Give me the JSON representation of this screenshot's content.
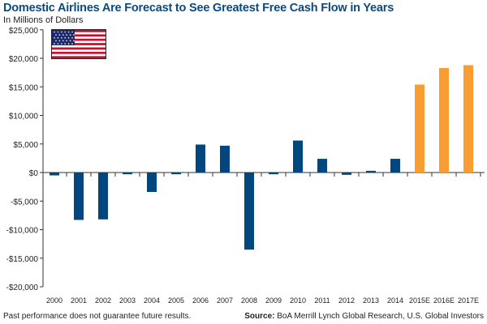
{
  "title": "Domestic Airlines Are Forecast to See Greatest Free Cash Flow in Years",
  "subtitle": "In Millions of Dollars",
  "footer": {
    "disclaimer": "Past performance does not guarantee future results.",
    "source_label": "Source:",
    "source_text": "BoA Merrill Lynch Global Research, U.S. Global Investors"
  },
  "flag_icon": "us-flag-icon",
  "colors": {
    "actual": "#00467f",
    "forecast": "#f99d33",
    "title": "#0b4a7d"
  },
  "chart_data": {
    "type": "bar",
    "title": "Domestic Airlines Are Forecast to See Greatest Free Cash Flow in Years",
    "ylabel": "In Millions of Dollars",
    "categories": [
      "2000",
      "2001",
      "2002",
      "2003",
      "2004",
      "2005",
      "2006",
      "2007",
      "2008",
      "2009",
      "2010",
      "2011",
      "2012",
      "2013",
      "2014",
      "2015E",
      "2016E",
      "2017E"
    ],
    "values": [
      -500,
      -8300,
      -8200,
      -300,
      -3400,
      -300,
      4900,
      4700,
      -13500,
      -300,
      5600,
      2400,
      -400,
      300,
      2400,
      15400,
      18300,
      18800
    ],
    "forecast": [
      false,
      false,
      false,
      false,
      false,
      false,
      false,
      false,
      false,
      false,
      false,
      false,
      false,
      false,
      false,
      true,
      true,
      true
    ],
    "ylim": [
      -20000,
      25000
    ],
    "yticks": [
      25000,
      20000,
      15000,
      10000,
      5000,
      0,
      -5000,
      -10000,
      -15000,
      -20000
    ],
    "ytick_labels": [
      "$25,000",
      "$20,000",
      "$15,000",
      "$10,000",
      "$5,000",
      "$0",
      "-$5,000",
      "-$10,000",
      "-$15,000",
      "-$20,000"
    ],
    "grid": false,
    "legend": "none"
  }
}
